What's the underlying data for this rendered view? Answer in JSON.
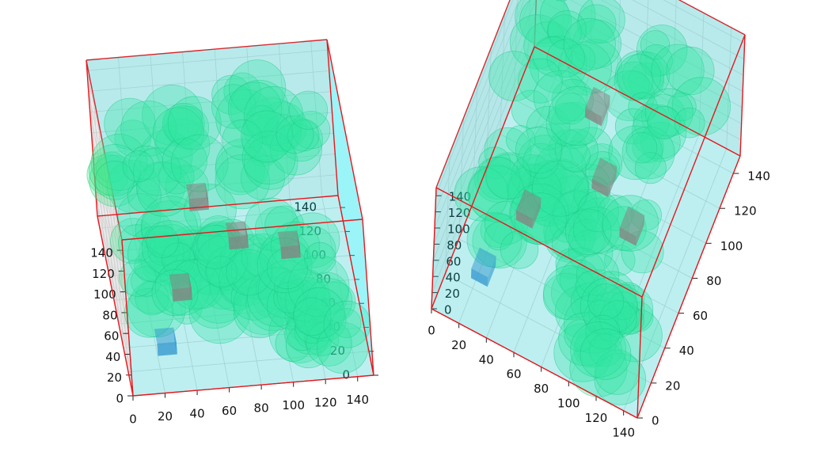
{
  "chart_data": [
    {
      "type": "scatter3d",
      "title": "",
      "xlabel": "",
      "ylabel": "",
      "zlabel": "",
      "xlim": [
        0,
        150
      ],
      "ylim": [
        0,
        150
      ],
      "zlim": [
        0,
        150
      ],
      "x_ticks": [
        "0",
        "20",
        "40",
        "60",
        "80",
        "100",
        "120",
        "140"
      ],
      "y_ticks": [
        "0",
        "20",
        "40",
        "60",
        "80",
        "100",
        "120",
        "140"
      ],
      "z_ticks": [
        "0",
        "20",
        "40",
        "60",
        "80",
        "100",
        "120",
        "140"
      ],
      "grid": true,
      "colors": {
        "box_fill": "#00e5ee",
        "box_edge": "#e8161b",
        "spheres": "#3ee68c",
        "cube_agent": "#3b7fc4",
        "cube_targets": "#b06060"
      }
    },
    {
      "type": "scatter3d",
      "title": "",
      "xlabel": "",
      "ylabel": "",
      "zlabel": "",
      "xlim": [
        0,
        150
      ],
      "ylim": [
        0,
        150
      ],
      "zlim": [
        0,
        150
      ],
      "x_ticks": [
        "0",
        "20",
        "40",
        "60",
        "80",
        "100",
        "120",
        "140"
      ],
      "y_ticks": [
        "0",
        "20",
        "40",
        "60",
        "80",
        "100",
        "120",
        "140"
      ],
      "z_ticks": [
        "0",
        "20",
        "40",
        "60",
        "80",
        "100",
        "120",
        "140"
      ],
      "grid": true,
      "colors": {
        "box_fill": "#00e5ee",
        "box_edge": "#e8161b",
        "spheres": "#3ee68c",
        "cube_agent": "#3b7fc4",
        "cube_targets": "#b06060"
      }
    }
  ]
}
